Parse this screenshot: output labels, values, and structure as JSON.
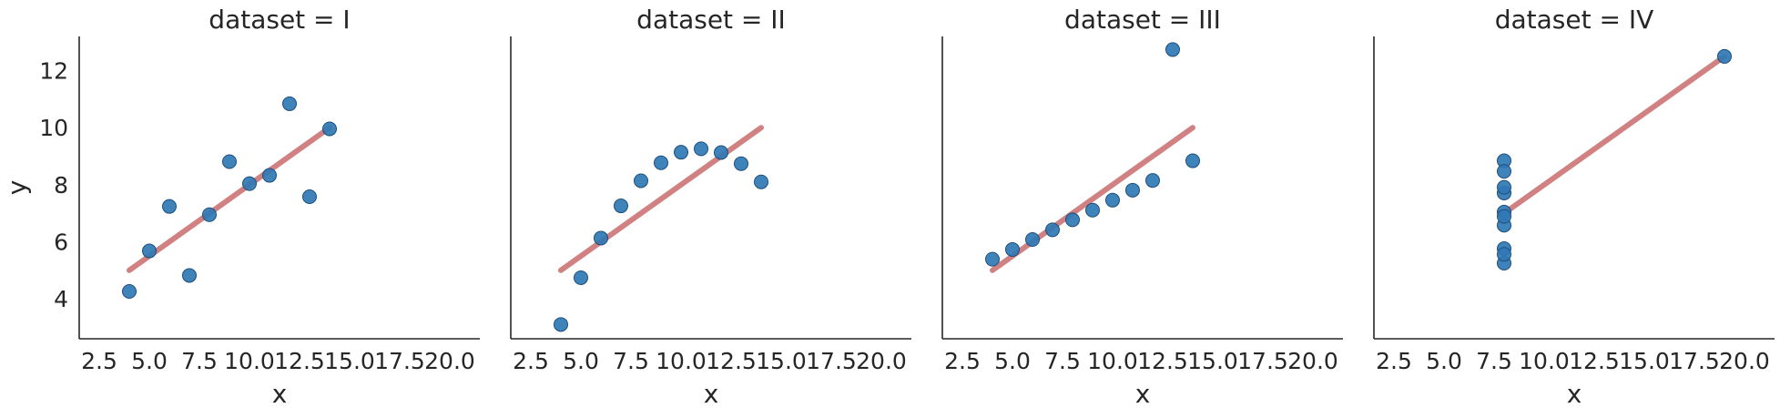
{
  "chart_data": {
    "type": "scatter",
    "grid": false,
    "colors": {
      "points": "#2f78b5",
      "fit": "#c96b6b",
      "axis": "#262626",
      "background": "#ffffff"
    },
    "xlim": [
      1.5,
      21.5
    ],
    "ylim": [
      2.6,
      13.2
    ],
    "x_ticks": [
      "2.5",
      "5.0",
      "7.5",
      "10.0",
      "12.5",
      "15.0",
      "17.5",
      "20.0"
    ],
    "y_ticks": [
      "4",
      "6",
      "8",
      "10",
      "12"
    ],
    "ylabel": "y",
    "panels": [
      {
        "title": "dataset = I",
        "xlabel": "x",
        "x": [
          10,
          8,
          13,
          9,
          11,
          14,
          6,
          4,
          12,
          7,
          5
        ],
        "y": [
          8.04,
          6.95,
          7.58,
          8.81,
          8.33,
          9.96,
          7.24,
          4.26,
          10.84,
          4.82,
          5.68
        ],
        "fit": {
          "x": [
            4,
            14
          ],
          "y": [
            5.0,
            10.0
          ]
        }
      },
      {
        "title": "dataset = II",
        "xlabel": "x",
        "x": [
          10,
          8,
          13,
          9,
          11,
          14,
          6,
          4,
          12,
          7,
          5
        ],
        "y": [
          9.14,
          8.14,
          8.74,
          8.77,
          9.26,
          8.1,
          6.13,
          3.1,
          9.13,
          7.26,
          4.74
        ],
        "fit": {
          "x": [
            4,
            14
          ],
          "y": [
            5.0,
            10.0
          ]
        }
      },
      {
        "title": "dataset = III",
        "xlabel": "x",
        "x": [
          10,
          8,
          13,
          9,
          11,
          14,
          6,
          4,
          12,
          7,
          5
        ],
        "y": [
          7.46,
          6.77,
          12.74,
          7.11,
          7.81,
          8.84,
          6.08,
          5.39,
          8.15,
          6.42,
          5.73
        ],
        "fit": {
          "x": [
            4,
            14
          ],
          "y": [
            5.0,
            10.0
          ]
        }
      },
      {
        "title": "dataset = IV",
        "xlabel": "x",
        "x": [
          8,
          8,
          8,
          8,
          8,
          8,
          8,
          19,
          8,
          8,
          8
        ],
        "y": [
          6.58,
          5.76,
          7.71,
          8.84,
          8.47,
          7.04,
          5.25,
          12.5,
          5.56,
          7.91,
          6.89
        ],
        "fit": {
          "x": [
            8,
            19
          ],
          "y": [
            7.0,
            12.5
          ]
        }
      }
    ]
  }
}
